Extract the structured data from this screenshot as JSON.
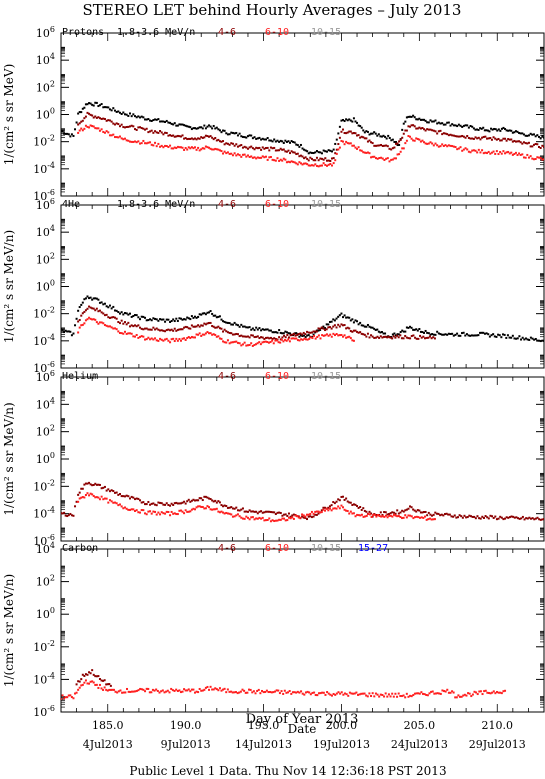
{
  "title": "STEREO LET behind Hourly Averages – July 2013",
  "footer": "Public Level 1 Data. Thu Nov 14 12:36:18 PST 2013",
  "x_axis_label": "Day of Year 2013",
  "date_axis_label": "Date",
  "colors": {
    "c1": "#000000",
    "c2": "#8b0000",
    "c3": "#ff2020",
    "c4": "#999999",
    "c5": "#0000ff"
  },
  "chart_data": [
    {
      "type": "scatter",
      "species": "Protons",
      "series_labels": [
        "1.8-3.6 MeV/n",
        "4-6",
        "6-10",
        "10-15"
      ],
      "ylabel": "1/(cm² s sr MeV)",
      "y_scale": "log",
      "ylim": [
        1e-06,
        1000000.0
      ],
      "y_ticks": [
        -6,
        -4,
        -2,
        0,
        2,
        4,
        6
      ],
      "xlim": [
        182,
        213
      ],
      "series": [
        {
          "label_index": 0,
          "color": "c1",
          "points": [
            [
              182,
              0.06
            ],
            [
              182.8,
              0.025
            ],
            [
              183.1,
              1.0
            ],
            [
              183.7,
              7
            ],
            [
              184.5,
              5
            ],
            [
              186,
              1.2
            ],
            [
              187.5,
              0.5
            ],
            [
              189,
              0.25
            ],
            [
              190,
              0.12
            ],
            [
              191,
              0.1
            ],
            [
              191.5,
              0.15
            ],
            [
              192.5,
              0.05
            ],
            [
              194,
              0.025
            ],
            [
              196,
              0.012
            ],
            [
              197,
              0.008
            ],
            [
              197.5,
              0.004
            ],
            [
              198,
              0.0015
            ],
            [
              199.5,
              0.002
            ],
            [
              200,
              0.3
            ],
            [
              200.8,
              0.4
            ],
            [
              201.5,
              0.05
            ],
            [
              202,
              0.04
            ],
            [
              202.8,
              0.025
            ],
            [
              203.3,
              0.015
            ],
            [
              203.7,
              0.005
            ],
            [
              204,
              0.2
            ],
            [
              204.3,
              0.8
            ],
            [
              205.5,
              0.35
            ],
            [
              207,
              0.2
            ],
            [
              208.5,
              0.1
            ],
            [
              209.5,
              0.07
            ],
            [
              210.5,
              0.08
            ],
            [
              211.5,
              0.04
            ],
            [
              213,
              0.02
            ]
          ]
        },
        {
          "label_index": 1,
          "color": "c2",
          "points": [
            [
              183.1,
              0.2
            ],
            [
              183.7,
              1
            ],
            [
              184.5,
              0.6
            ],
            [
              186,
              0.15
            ],
            [
              187.5,
              0.07
            ],
            [
              189,
              0.035
            ],
            [
              190,
              0.02
            ],
            [
              191,
              0.018
            ],
            [
              191.5,
              0.025
            ],
            [
              192.5,
              0.008
            ],
            [
              194,
              0.004
            ],
            [
              196,
              0.0025
            ],
            [
              197,
              0.0015
            ],
            [
              198,
              0.0005
            ],
            [
              199.5,
              0.0005
            ],
            [
              200,
              0.06
            ],
            [
              200.8,
              0.05
            ],
            [
              202,
              0.007
            ],
            [
              203.3,
              0.003
            ],
            [
              204,
              0.03
            ],
            [
              204.3,
              0.15
            ],
            [
              205.5,
              0.07
            ],
            [
              207,
              0.035
            ],
            [
              208.5,
              0.02
            ],
            [
              210.5,
              0.015
            ],
            [
              211.5,
              0.008
            ],
            [
              213,
              0.004
            ]
          ]
        },
        {
          "label_index": 2,
          "color": "c3",
          "points": [
            [
              183.1,
              0.05
            ],
            [
              183.7,
              0.15
            ],
            [
              184.5,
              0.08
            ],
            [
              186,
              0.015
            ],
            [
              187.5,
              0.008
            ],
            [
              189,
              0.004
            ],
            [
              190,
              0.003
            ],
            [
              191,
              0.003
            ],
            [
              191.5,
              0.004
            ],
            [
              192.5,
              0.0015
            ],
            [
              194,
              0.0008
            ],
            [
              196,
              0.0005
            ],
            [
              197,
              0.0003
            ],
            [
              198,
              0.0002
            ],
            [
              199.5,
              0.0002
            ],
            [
              200,
              0.01
            ],
            [
              200.8,
              0.005
            ],
            [
              202,
              0.0008
            ],
            [
              203.3,
              0.0004
            ],
            [
              204,
              0.004
            ],
            [
              204.3,
              0.02
            ],
            [
              205.5,
              0.008
            ],
            [
              207,
              0.004
            ],
            [
              208.5,
              0.002
            ],
            [
              210.5,
              0.0015
            ],
            [
              211.5,
              0.001
            ],
            [
              213,
              0.0005
            ]
          ]
        }
      ]
    },
    {
      "type": "scatter",
      "species": "4He",
      "series_labels": [
        "1.8-3.6 MeV/n",
        "4-6",
        "6-10",
        "10-15"
      ],
      "ylabel": "1/(cm² s sr MeV/n)",
      "y_scale": "log",
      "ylim": [
        1e-06,
        1000000.0
      ],
      "y_ticks": [
        -6,
        -4,
        -2,
        0,
        2,
        4,
        6
      ],
      "xlim": [
        182,
        213
      ],
      "series": [
        {
          "label_index": 0,
          "color": "c1",
          "points": [
            [
              182,
              0.0006
            ],
            [
              182.8,
              0.0003
            ],
            [
              183.1,
              0.02
            ],
            [
              183.7,
              0.2
            ],
            [
              184.5,
              0.08
            ],
            [
              186,
              0.01
            ],
            [
              187.5,
              0.004
            ],
            [
              189,
              0.003
            ],
            [
              190,
              0.004
            ],
            [
              191,
              0.008
            ],
            [
              191.5,
              0.015
            ],
            [
              192.5,
              0.003
            ],
            [
              194,
              0.0008
            ],
            [
              196,
              0.0005
            ],
            [
              197,
              0.0003
            ],
            [
              198,
              0.0002
            ],
            [
              200,
              0.008
            ],
            [
              200.8,
              0.003
            ],
            [
              202,
              0.0008
            ],
            [
              203,
              0.0002
            ],
            [
              204,
              0.0005
            ],
            [
              204.3,
              0.001
            ],
            [
              205.5,
              0.0004
            ],
            [
              207,
              0.0003
            ],
            [
              209,
              0.0003
            ],
            [
              211,
              0.0002
            ],
            [
              213,
              0.0001
            ]
          ]
        },
        {
          "label_index": 1,
          "color": "c2",
          "points": [
            [
              183.1,
              0.003
            ],
            [
              183.7,
              0.03
            ],
            [
              184.5,
              0.015
            ],
            [
              186,
              0.002
            ],
            [
              187.5,
              0.0008
            ],
            [
              189,
              0.0006
            ],
            [
              190,
              0.0008
            ],
            [
              191,
              0.0015
            ],
            [
              191.5,
              0.002
            ],
            [
              192.5,
              0.0005
            ],
            [
              194,
              0.0002
            ],
            [
              196,
              0.00015
            ],
            [
              200,
              0.0015
            ],
            [
              200.8,
              0.0005
            ],
            [
              202,
              0.0002
            ],
            [
              204.3,
              0.0002
            ],
            [
              206,
              0.00015
            ]
          ]
        },
        {
          "label_index": 2,
          "color": "c3",
          "points": [
            [
              183.1,
              0.0005
            ],
            [
              183.7,
              0.005
            ],
            [
              184.5,
              0.002
            ],
            [
              186,
              0.0004
            ],
            [
              187.5,
              0.00015
            ],
            [
              189,
              0.0001
            ],
            [
              190,
              0.00015
            ],
            [
              191,
              0.0003
            ],
            [
              191.5,
              0.0004
            ],
            [
              192.5,
              0.0001
            ],
            [
              194,
              5e-05
            ],
            [
              200,
              0.0003
            ],
            [
              200.8,
              0.0001
            ]
          ]
        }
      ]
    },
    {
      "type": "scatter",
      "species": "Helium",
      "series_labels": [
        "",
        "4-6",
        "6-10",
        "10-15"
      ],
      "ylabel": "1/(cm² s sr MeV/n)",
      "y_scale": "log",
      "ylim": [
        1e-06,
        1000000.0
      ],
      "y_ticks": [
        -6,
        -4,
        -2,
        0,
        2,
        4,
        6
      ],
      "xlim": [
        182,
        213
      ],
      "series": [
        {
          "label_index": 1,
          "color": "c2",
          "points": [
            [
              182,
              0.0001
            ],
            [
              182.8,
              8e-05
            ],
            [
              183.1,
              0.003
            ],
            [
              183.7,
              0.02
            ],
            [
              184.5,
              0.01
            ],
            [
              186,
              0.002
            ],
            [
              187.5,
              0.0006
            ],
            [
              189,
              0.0005
            ],
            [
              190,
              0.0007
            ],
            [
              191,
              0.0012
            ],
            [
              191.5,
              0.0015
            ],
            [
              192.5,
              0.0004
            ],
            [
              194,
              0.00015
            ],
            [
              196,
              0.0001
            ],
            [
              198,
              5e-05
            ],
            [
              200,
              0.0015
            ],
            [
              200.8,
              0.0005
            ],
            [
              202,
              8e-05
            ],
            [
              204,
              0.00015
            ],
            [
              204.3,
              0.0003
            ],
            [
              205.5,
              0.0001
            ],
            [
              208,
              6e-05
            ],
            [
              213,
              4e-05
            ]
          ]
        },
        {
          "label_index": 2,
          "color": "c3",
          "points": [
            [
              183.1,
              0.0008
            ],
            [
              183.7,
              0.003
            ],
            [
              184.5,
              0.0015
            ],
            [
              186,
              0.0003
            ],
            [
              187.5,
              0.00012
            ],
            [
              189,
              0.0001
            ],
            [
              190,
              0.00015
            ],
            [
              191,
              0.0003
            ],
            [
              191.5,
              0.0003
            ],
            [
              192.5,
              0.0001
            ],
            [
              194,
              5e-05
            ],
            [
              196,
              3e-05
            ],
            [
              200,
              0.0003
            ],
            [
              200.8,
              8e-05
            ],
            [
              204.3,
              6e-05
            ],
            [
              206,
              4e-05
            ]
          ]
        }
      ]
    },
    {
      "type": "scatter",
      "species": "Carbon",
      "series_labels": [
        "",
        "4-6",
        "6-10",
        "10-15",
        "15-27"
      ],
      "ylabel": "1/(cm² s sr MeV/n)",
      "y_scale": "log",
      "ylim": [
        1e-06,
        10000.0
      ],
      "y_ticks": [
        -6,
        -4,
        -2,
        0,
        2,
        4
      ],
      "xlim": [
        182,
        213
      ],
      "series": [
        {
          "label_index": 1,
          "color": "c2",
          "points": [
            [
              183,
              5e-05
            ],
            [
              183.5,
              0.0002
            ],
            [
              184,
              0.0003
            ],
            [
              184.5,
              0.0001
            ],
            [
              185.2,
              4e-05
            ]
          ]
        },
        {
          "label_index": 2,
          "color": "c3",
          "points": [
            [
              182,
              8e-06
            ],
            [
              182.8,
              8e-06
            ],
            [
              183.2,
              3e-05
            ],
            [
              183.6,
              8e-05
            ],
            [
              184.2,
              5e-05
            ],
            [
              185,
              2e-05
            ],
            [
              185.5,
              2e-05
            ],
            [
              187.5,
              2e-05
            ],
            [
              188,
              2e-05
            ],
            [
              189.5,
              2e-05
            ],
            [
              190.5,
              2e-05
            ],
            [
              191,
              2e-05
            ],
            [
              191.6,
              3e-05
            ],
            [
              192.5,
              2e-05
            ],
            [
              204.3,
              1e-05
            ],
            [
              207,
              2e-05
            ],
            [
              207.3,
              1e-05
            ],
            [
              210.5,
              2e-05
            ]
          ]
        }
      ]
    }
  ],
  "x_ticks": [
    {
      "doy": 185,
      "label": "185.0"
    },
    {
      "doy": 190,
      "label": "190.0"
    },
    {
      "doy": 195,
      "label": "195.0"
    },
    {
      "doy": 200,
      "label": "200.0"
    },
    {
      "doy": 205,
      "label": "205.0"
    },
    {
      "doy": 210,
      "label": "210.0"
    }
  ],
  "date_ticks": [
    {
      "doy": 185,
      "label": "4Jul2013"
    },
    {
      "doy": 190,
      "label": "9Jul2013"
    },
    {
      "doy": 195,
      "label": "14Jul2013"
    },
    {
      "doy": 200,
      "label": "19Jul2013"
    },
    {
      "doy": 205,
      "label": "24Jul2013"
    },
    {
      "doy": 210,
      "label": "29Jul2013"
    }
  ]
}
